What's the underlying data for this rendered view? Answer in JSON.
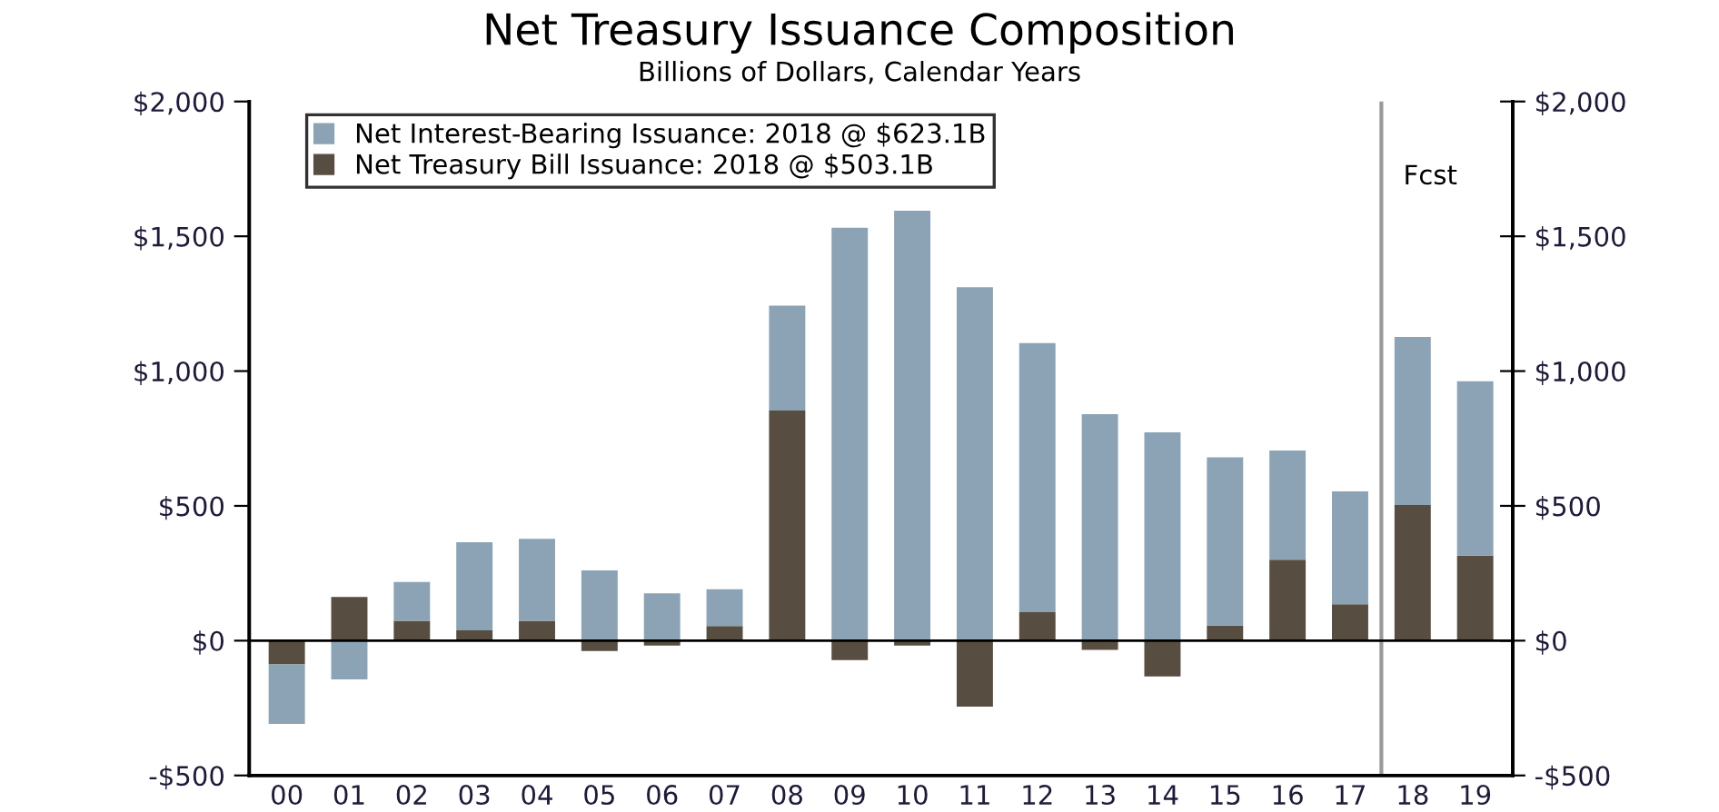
{
  "chart_data": {
    "type": "bar",
    "title": "Net Treasury Issuance Composition",
    "subtitle": "Billions of Dollars, Calendar Years",
    "categories": [
      "00",
      "01",
      "02",
      "03",
      "04",
      "05",
      "06",
      "07",
      "08",
      "09",
      "10",
      "11",
      "12",
      "13",
      "14",
      "15",
      "16",
      "17",
      "18",
      "19"
    ],
    "stacked": true,
    "series": [
      {
        "name": "Net Treasury Bill Issuance: 2018 @ $503.1B",
        "color": "#574d40",
        "values": [
          -88,
          162,
          74,
          38,
          74,
          -38,
          -18,
          54,
          854,
          -72,
          -18,
          -245,
          106,
          -34,
          -133,
          56,
          300,
          135,
          503.1,
          315
        ]
      },
      {
        "name": "Net Interest-Bearing Issuance: 2018 @ $623.1B",
        "color": "#8ba3b5",
        "values": [
          -221,
          -144,
          144,
          327,
          304,
          261,
          176,
          137,
          389,
          1532,
          1595,
          1311,
          998,
          840,
          773,
          624,
          405,
          419,
          623.1,
          647
        ]
      }
    ],
    "ylim": [
      -500,
      2000
    ],
    "yticks": [
      {
        "value": -500,
        "label": "-$500"
      },
      {
        "value": 0,
        "label": "$0"
      },
      {
        "value": 500,
        "label": "$500"
      },
      {
        "value": 1000,
        "label": "$1,000"
      },
      {
        "value": 1500,
        "label": "$1,500"
      },
      {
        "value": 2000,
        "label": "$2,000"
      }
    ],
    "y2lim": [
      -500,
      2000
    ],
    "y2ticks": [
      {
        "value": -500,
        "label": "-$500"
      },
      {
        "value": 0,
        "label": "$0"
      },
      {
        "value": 500,
        "label": "$500"
      },
      {
        "value": 1000,
        "label": "$1,000"
      },
      {
        "value": 1500,
        "label": "$1,500"
      },
      {
        "value": 2000,
        "label": "$2,000"
      }
    ],
    "ref_lines": [
      {
        "axis": "x",
        "value": "18",
        "label": "Fcst",
        "color": "#999999"
      }
    ],
    "legend": "top left",
    "grid": false
  }
}
